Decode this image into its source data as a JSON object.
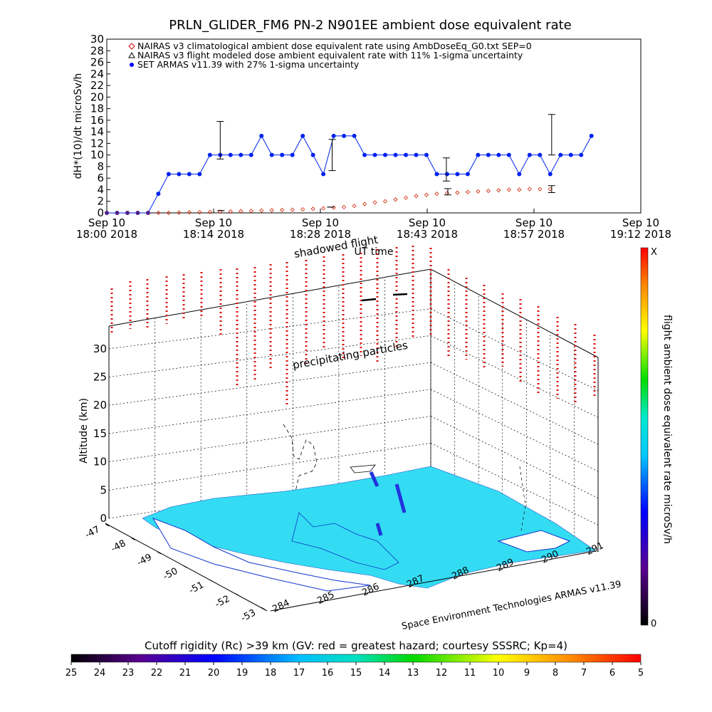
{
  "chart_data": [
    {
      "type": "line",
      "title": "PRLN_GLIDER_FM6 PN-2 N901EE ambient dose equivalent rate",
      "ylabel": "dH*(10)/dt microSv/h",
      "xlabel": "UT time",
      "ylim": [
        0,
        30
      ],
      "yticks": [
        "0",
        "2",
        "4",
        "6",
        "8",
        "10",
        "12",
        "14",
        "16",
        "18",
        "20",
        "22",
        "24",
        "26",
        "28",
        "30"
      ],
      "xticks": [
        {
          "l1": "Sep 10",
          "l2": "18:00 2018"
        },
        {
          "l1": "Sep 10",
          "l2": "18:14 2018"
        },
        {
          "l1": "Sep 10",
          "l2": "18:28 2018"
        },
        {
          "l1": "Sep 10",
          "l2": "18:43 2018"
        },
        {
          "l1": "Sep 10",
          "l2": "18:57 2018"
        },
        {
          "l1": "Sep 10",
          "l2": "19:12 2018"
        }
      ],
      "xrange_minutes": [
        0,
        72.5
      ],
      "legend": [
        {
          "marker": "diamond",
          "color": "#cc0000",
          "label": "NAIRAS v3 climatological ambient dose equivalent rate using AmbDoseEq_G0.txt SEP=0"
        },
        {
          "marker": "triangle",
          "color": "#000000",
          "label": "NAIRAS v3 flight modeled dose ambient equivalent rate with 11% 1-sigma uncertainty"
        },
        {
          "marker": "dot",
          "color": "#0000ff",
          "label": "SET ARMAS v11.39 with 27% 1-sigma uncertainty"
        }
      ],
      "series": [
        {
          "name": "SET ARMAS v11.39 with 27% 1-sigma uncertainty",
          "color": "#0022ee",
          "x": [
            0,
            1.4,
            2.8,
            4.2,
            5.6,
            7.0,
            8.4,
            9.8,
            11.2,
            12.6,
            14.0,
            15.4,
            16.8,
            18.2,
            19.6,
            21.0,
            22.4,
            23.8,
            25.2,
            26.6,
            28.0,
            29.4,
            30.8,
            32.2,
            33.6,
            35.0,
            36.4,
            37.8,
            39.2,
            40.6,
            42.0,
            43.4,
            44.8,
            46.2,
            47.6,
            49.0,
            50.4,
            51.8,
            53.2,
            54.6,
            56.0,
            57.4,
            58.8,
            60.2,
            61.6,
            63.0,
            64.4,
            65.8
          ],
          "y": [
            0,
            0,
            0,
            0,
            0,
            3.3,
            6.7,
            6.7,
            6.7,
            6.7,
            10,
            10,
            10,
            10,
            10,
            13.3,
            10,
            10,
            10,
            13.3,
            10,
            6.7,
            13.3,
            13.3,
            13.3,
            10,
            10,
            10,
            10,
            10,
            10,
            10,
            6.7,
            6.7,
            6.7,
            6.7,
            10,
            10,
            10,
            10,
            6.7,
            10,
            10,
            6.7,
            10,
            10,
            10,
            13.3
          ],
          "error_bars": [
            {
              "x": 15.4,
              "low": 9.3,
              "high": 15.8
            },
            {
              "x": 30.6,
              "low": 7.3,
              "high": 12.7
            },
            {
              "x": 46.1,
              "low": 5.5,
              "high": 9.5
            },
            {
              "x": 60.4,
              "low": 10.0,
              "high": 17.0
            }
          ]
        },
        {
          "name": "NAIRAS v3 climatological ambient dose equivalent rate using AmbDoseEq_G0.txt SEP=0",
          "color": "#cc2200",
          "x": [
            0,
            1.4,
            2.8,
            4.2,
            5.6,
            7.0,
            8.4,
            9.8,
            11.2,
            12.6,
            14.0,
            15.4,
            16.8,
            18.2,
            19.6,
            21.0,
            22.4,
            23.8,
            25.2,
            26.6,
            28.0,
            29.4,
            30.8,
            32.2,
            33.6,
            35.0,
            36.4,
            37.8,
            39.2,
            40.6,
            42.0,
            43.4,
            44.8,
            46.2,
            47.6,
            49.0,
            50.4,
            51.8,
            53.2,
            54.6,
            56.0,
            57.4,
            58.8,
            60.2
          ],
          "y": [
            0,
            0,
            0,
            0,
            0,
            0,
            0,
            0.05,
            0.1,
            0.12,
            0.15,
            0.2,
            0.25,
            0.3,
            0.35,
            0.4,
            0.45,
            0.5,
            0.55,
            0.6,
            0.7,
            0.8,
            0.9,
            1.0,
            1.2,
            1.5,
            1.8,
            2.0,
            2.3,
            2.6,
            2.9,
            3.1,
            3.3,
            3.4,
            3.5,
            3.6,
            3.7,
            3.8,
            3.9,
            4.0,
            4.0,
            4.1,
            4.1,
            4.1
          ],
          "error_bars": [
            {
              "x": 46.3,
              "low": 3.1,
              "high": 4.2
            },
            {
              "x": 60.4,
              "low": 3.5,
              "high": 4.7
            }
          ]
        },
        {
          "name": "NAIRAS v3 flight modeled dose ambient equivalent rate with 11% 1-sigma uncertainty",
          "color": "#000000",
          "x": [
            15.5,
            30.4
          ],
          "y": [
            0.4,
            1.0
          ]
        }
      ]
    },
    {
      "type": "scatter",
      "title": "",
      "zlabel": "Altitude (km)",
      "zlim": [
        0,
        34
      ],
      "zticks": [
        "0",
        "5",
        "10",
        "15",
        "20",
        "25",
        "30"
      ],
      "lat_ticks": [
        "-47",
        "-48",
        "-49",
        "-50",
        "-51",
        "-52",
        "-53"
      ],
      "lon_ticks": [
        "284",
        "285",
        "286",
        "287",
        "288",
        "289",
        "290",
        "291"
      ],
      "annotations": [
        "shadowed flight",
        "precipitating particles"
      ],
      "credit": "Space Environment Technologies ARMAS v11.39",
      "colorbar": {
        "label": "flight ambient dose equivalent rate microSv/h",
        "top_label": "X",
        "bottom_label": "0"
      }
    },
    {
      "type": "heatmap",
      "title": "Cutoff rigidity (Rc) >39 km (GV: red = greatest hazard; courtesy SSSRC; Kp=4)",
      "ticks": [
        "25",
        "24",
        "23",
        "22",
        "21",
        "20",
        "19",
        "18",
        "17",
        "16",
        "15",
        "14",
        "13",
        "12",
        "11",
        "10",
        "9",
        "8",
        "7",
        "6",
        "5"
      ]
    }
  ]
}
